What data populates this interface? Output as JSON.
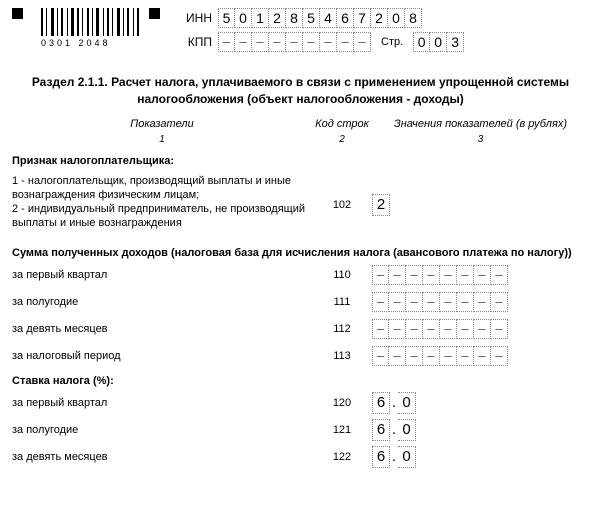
{
  "barcode_text": "0301 2048",
  "inn_label": "ИНН",
  "kpp_label": "КПП",
  "page_label": "Стр.",
  "inn": [
    "5",
    "0",
    "1",
    "2",
    "8",
    "5",
    "4",
    "6",
    "7",
    "2",
    "0",
    "8"
  ],
  "kpp": [
    "–",
    "–",
    "–",
    "–",
    "–",
    "–",
    "–",
    "–",
    "–"
  ],
  "page": [
    "0",
    "0",
    "3"
  ],
  "section_title": "Раздел 2.1.1. Расчет налога, уплачиваемого в связи с применением упрощенной системы налогообложения (объект налогообложения - доходы)",
  "headers": {
    "c1": "Показатели",
    "c2": "Код строк",
    "c3": "Значения показателей (в рублях)"
  },
  "col_nums": {
    "c1": "1",
    "c2": "2",
    "c3": "3"
  },
  "sign_block": {
    "title": "Признак налогоплательщика:",
    "note": "1 - налогоплательщик, производящий выплаты и иные вознаграждения физическим лицам;\n2 - индивидуальный предприниматель, не производящий выплаты и иные вознаграждения",
    "code": "102",
    "value": "2"
  },
  "income_title": "Сумма полученных доходов (налоговая база для исчисления налога (авансового платежа по налогу))",
  "income_rows": [
    {
      "label": "за первый квартал",
      "code": "110"
    },
    {
      "label": "за полугодие",
      "code": "111"
    },
    {
      "label": "за девять месяцев",
      "code": "112"
    },
    {
      "label": "за налоговый период",
      "code": "113"
    }
  ],
  "rate_title": "Ставка налога (%):",
  "rate_rows": [
    {
      "label": "за первый квартал",
      "code": "120",
      "v1": "6",
      "v2": "0"
    },
    {
      "label": "за полугодие",
      "code": "121",
      "v1": "6",
      "v2": "0"
    },
    {
      "label": "за девять месяцев",
      "code": "122",
      "v1": "6",
      "v2": "0"
    }
  ],
  "dash": "–"
}
